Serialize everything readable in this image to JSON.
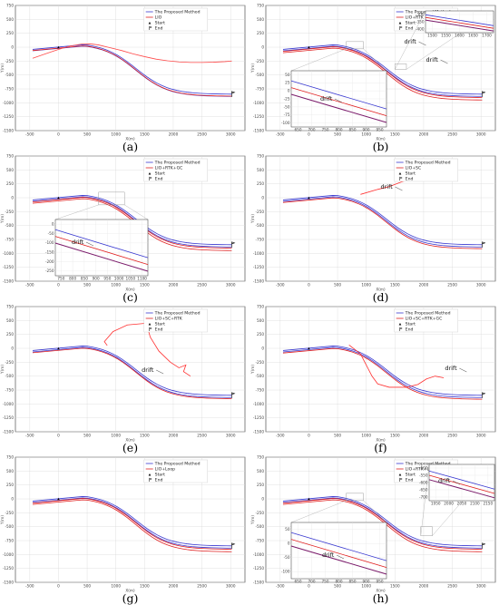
{
  "chart_data": [
    {
      "label": "(a)",
      "type": "line",
      "xlabel": "X(m)",
      "ylabel": "Y(m)",
      "xlim": [
        -750,
        3250
      ],
      "ylim": [
        -1500,
        750
      ],
      "xticks": [
        -500,
        0,
        500,
        1000,
        1500,
        2000,
        2500,
        3000
      ],
      "yticks": [
        -1500,
        -1250,
        -1000,
        -750,
        -500,
        -250,
        0,
        250,
        500,
        750
      ],
      "legend": [
        "The Proposed Method",
        "LIO",
        "Start",
        "End"
      ],
      "series": [
        {
          "name": "The Proposed Method",
          "color": "#3a3ad0",
          "x": [
            -450,
            -200,
            0,
            200,
            400,
            550,
            700,
            900,
            1100,
            1300,
            1500,
            1700,
            1900,
            2100,
            2300,
            2500,
            2700,
            2900,
            3020
          ],
          "y": [
            -40,
            -25,
            5,
            25,
            45,
            40,
            10,
            -80,
            -210,
            -350,
            -480,
            -590,
            -670,
            -730,
            -770,
            -800,
            -820,
            -840,
            -845
          ]
        },
        {
          "name": "",
          "color": "#e02020",
          "x": [
            -450,
            -200,
            0,
            200,
            400,
            550,
            700,
            900,
            1100,
            1300,
            1500,
            1700,
            1900,
            2100,
            2300,
            2500,
            2700,
            2900,
            3020
          ],
          "y": [
            -40,
            -25,
            5,
            25,
            45,
            40,
            0,
            -100,
            -230,
            -370,
            -500,
            -600,
            -680,
            -740,
            -785,
            -815,
            -835,
            -850,
            -855
          ]
        },
        {
          "name": "LIO",
          "color": "#ff5555",
          "x": [
            -450,
            -200,
            0,
            200,
            400,
            550,
            700,
            900,
            1100,
            1300,
            1500,
            1700,
            1900,
            2100,
            2300,
            2500,
            2700,
            2900,
            3020
          ],
          "y": [
            -200,
            -110,
            -40,
            20,
            55,
            60,
            40,
            -10,
            -60,
            -120,
            -170,
            -215,
            -245,
            -265,
            -275,
            -275,
            -270,
            -260,
            -250
          ]
        }
      ],
      "start": [
        0,
        0
      ],
      "end": [
        3020,
        -845
      ]
    },
    {
      "label": "(b)",
      "type": "line",
      "xlabel": "X(m)",
      "ylabel": "Y(m)",
      "xlim": [
        -750,
        3250
      ],
      "ylim": [
        -1500,
        750
      ],
      "xticks": [
        -500,
        0,
        500,
        1000,
        1500,
        2000,
        2500,
        3000
      ],
      "yticks": [
        -1500,
        -1250,
        -1000,
        -750,
        -500,
        -250,
        0,
        250,
        500,
        750
      ],
      "legend": [
        "The Proposed Method",
        "LIO+RTK",
        "Start",
        "End"
      ],
      "annotations": [
        "drift",
        "drift",
        "drift"
      ],
      "insets": [
        {
          "xticks": [
            650,
            700,
            750,
            800,
            850,
            900,
            950
          ],
          "yticks": [
            -100,
            -75,
            -50,
            -25,
            0,
            25,
            50
          ]
        },
        {
          "xticks": [
            1500,
            1550,
            1600,
            1650,
            1700
          ],
          "yticks": [
            -400,
            -350,
            -300
          ]
        }
      ]
    },
    {
      "label": "(c)",
      "type": "line",
      "xlabel": "X(m)",
      "ylabel": "Y(m)",
      "xlim": [
        -750,
        3250
      ],
      "ylim": [
        -1500,
        750
      ],
      "xticks": [
        -500,
        0,
        500,
        1000,
        1500,
        2000,
        2500,
        3000
      ],
      "yticks": [
        -1500,
        -1250,
        -1000,
        -750,
        -500,
        -250,
        0,
        250,
        500,
        750
      ],
      "legend": [
        "The Proposed Method",
        "LIO+RTK+GC",
        "Start",
        "End"
      ],
      "annotations": [
        "drift"
      ],
      "insets": [
        {
          "xticks": [
            750,
            800,
            850,
            900,
            950,
            1000,
            1050,
            1100
          ],
          "yticks": [
            -250,
            -200,
            -150,
            -100,
            -50,
            0
          ]
        }
      ]
    },
    {
      "label": "(d)",
      "type": "line",
      "xlabel": "X(m)",
      "ylabel": "Y(m)",
      "xlim": [
        -750,
        3250
      ],
      "ylim": [
        -1500,
        750
      ],
      "xticks": [
        -500,
        0,
        500,
        1000,
        1500,
        2000,
        2500,
        3000
      ],
      "yticks": [
        -1500,
        -1250,
        -1000,
        -750,
        -500,
        -250,
        0,
        250,
        500,
        750
      ],
      "legend": [
        "The Proposed Method",
        "LIO+SC",
        "Start",
        "End"
      ],
      "annotations": [
        "drift"
      ]
    },
    {
      "label": "(e)",
      "type": "line",
      "xlabel": "X(m)",
      "ylabel": "Y(m)",
      "xlim": [
        -750,
        3250
      ],
      "ylim": [
        -1500,
        750
      ],
      "xticks": [
        -500,
        0,
        500,
        1000,
        1500,
        2000,
        2500,
        3000
      ],
      "yticks": [
        -1500,
        -1250,
        -1000,
        -750,
        -500,
        -250,
        0,
        250,
        500,
        750
      ],
      "legend": [
        "The Proposed Method",
        "LIO+SC+RTK",
        "Start",
        "End"
      ],
      "annotations": [
        "drift"
      ]
    },
    {
      "label": "(f)",
      "type": "line",
      "xlabel": "X(m)",
      "ylabel": "Y(m)",
      "xlim": [
        -750,
        3250
      ],
      "ylim": [
        -1500,
        750
      ],
      "xticks": [
        -500,
        0,
        500,
        1000,
        1500,
        2000,
        2500,
        3000
      ],
      "yticks": [
        -1500,
        -1250,
        -1000,
        -750,
        -500,
        -250,
        0,
        250,
        500,
        750
      ],
      "legend": [
        "The Proposed Method",
        "LIO+SC+RTK+GC",
        "Start",
        "End"
      ],
      "annotations": [
        "drift"
      ]
    },
    {
      "label": "(g)",
      "type": "line",
      "xlabel": "X(m)",
      "ylabel": "Y(m)",
      "xlim": [
        -750,
        3250
      ],
      "ylim": [
        -1500,
        750
      ],
      "xticks": [
        -500,
        0,
        500,
        1000,
        1500,
        2000,
        2500,
        3000
      ],
      "yticks": [
        -1500,
        -1250,
        -1000,
        -750,
        -500,
        -250,
        0,
        250,
        500,
        750
      ],
      "legend": [
        "The Proposed Method",
        "LIO+Loop",
        "Start",
        "End"
      ]
    },
    {
      "label": "(h)",
      "type": "line",
      "xlabel": "X(m)",
      "ylabel": "Y(m)",
      "xlim": [
        -750,
        3250
      ],
      "ylim": [
        -1500,
        750
      ],
      "xticks": [
        -500,
        0,
        500,
        1000,
        1500,
        2000,
        2500,
        3000
      ],
      "yticks": [
        -1500,
        -1250,
        -1000,
        -750,
        -500,
        -250,
        0,
        250,
        500,
        750
      ],
      "legend": [
        "The Proposed Method",
        "LIO+RTK+Loop",
        "Start",
        "End"
      ],
      "annotations": [
        "drift",
        "drift"
      ],
      "insets": [
        {
          "xticks": [
            650,
            700,
            750,
            800,
            850,
            900,
            950
          ],
          "yticks": [
            -100,
            -50,
            0,
            50
          ]
        },
        {
          "xticks": [
            1950,
            2000,
            2050,
            2100,
            2150
          ],
          "yticks": [
            -700,
            -650,
            -600,
            -550,
            -500
          ]
        }
      ]
    }
  ]
}
